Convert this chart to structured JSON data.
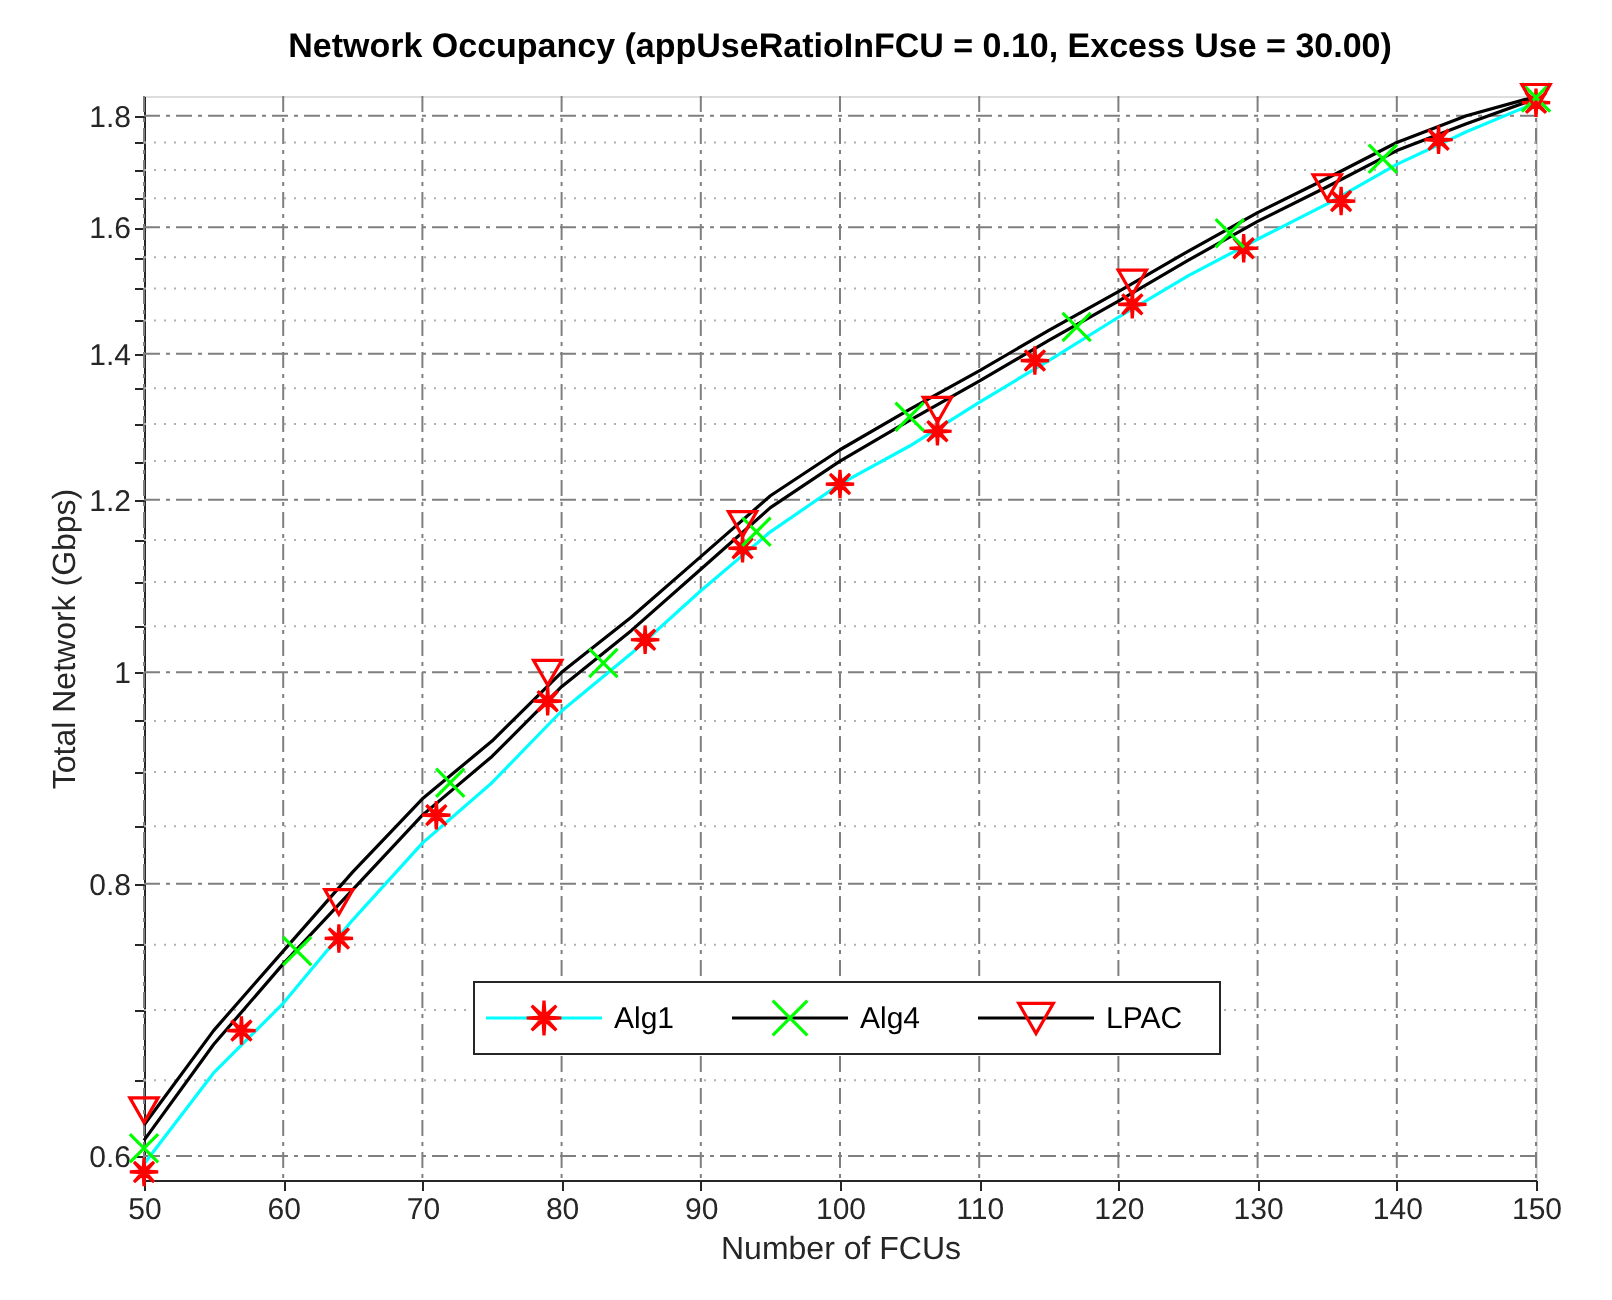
{
  "chart_data": {
    "type": "line",
    "title": "Network Occupancy (appUseRatioInFCU = 0.10, Excess Use = 30.00)",
    "xlabel": "Number of FCUs",
    "ylabel": "Total Network (Gbps)",
    "log": "y",
    "grid": true,
    "legend": "bottom",
    "xlim": [
      50,
      150
    ],
    "xticks": [
      50,
      60,
      70,
      80,
      90,
      100,
      110,
      120,
      130,
      140,
      150
    ],
    "ylim": [
      0.585,
      1.838
    ],
    "yticks": [
      0.6,
      {
        "value": 0.65,
        "label": null
      },
      {
        "value": 0.7,
        "label": null
      },
      {
        "value": 0.75,
        "label": null
      },
      0.8,
      {
        "value": 0.85,
        "label": null
      },
      {
        "value": 0.9,
        "label": null
      },
      {
        "value": 0.95,
        "label": null
      },
      1,
      {
        "value": 1.05,
        "label": null
      },
      {
        "value": 1.1,
        "label": null
      },
      {
        "value": 1.15,
        "label": null
      },
      1.2,
      {
        "value": 1.25,
        "label": null
      },
      {
        "value": 1.3,
        "label": null
      },
      {
        "value": 1.35,
        "label": null
      },
      1.4,
      {
        "value": 1.45,
        "label": null
      },
      {
        "value": 1.5,
        "label": null
      },
      {
        "value": 1.55,
        "label": null
      },
      1.6,
      {
        "value": 1.65,
        "label": null
      },
      {
        "value": 1.7,
        "label": null
      },
      {
        "value": 1.75,
        "label": null
      },
      1.8
    ],
    "x": [
      50,
      55,
      60,
      65,
      70,
      75,
      80,
      85,
      90,
      95,
      100,
      105,
      110,
      115,
      120,
      125,
      130,
      135,
      140,
      145,
      150
    ],
    "series": [
      {
        "name": "Alg1",
        "color": "#00ffff",
        "marker": "none",
        "values": [
          0.595,
          0.655,
          0.705,
          0.77,
          0.835,
          0.89,
          0.96,
          1.02,
          1.09,
          1.16,
          1.22,
          1.27,
          1.33,
          1.39,
          1.455,
          1.52,
          1.58,
          1.64,
          1.71,
          1.77,
          1.825
        ]
      },
      {
        "name": "Alg4",
        "color": "#000000",
        "marker": "none",
        "values": [
          0.61,
          0.675,
          0.735,
          0.795,
          0.86,
          0.915,
          0.985,
          1.045,
          1.115,
          1.19,
          1.25,
          1.305,
          1.36,
          1.42,
          1.48,
          1.545,
          1.61,
          1.67,
          1.735,
          1.785,
          1.833
        ]
      },
      {
        "name": "LPAC",
        "color": "#000000",
        "marker": "none",
        "values": [
          0.62,
          0.685,
          0.745,
          0.81,
          0.875,
          0.93,
          1.0,
          1.06,
          1.13,
          1.205,
          1.265,
          1.32,
          1.375,
          1.435,
          1.495,
          1.56,
          1.625,
          1.685,
          1.75,
          1.8,
          1.837
        ]
      },
      {
        "type": "scatter",
        "color": "#ff0000",
        "marker": "star",
        "x": [
          50,
          57,
          64,
          71,
          79,
          86,
          93,
          100,
          107,
          114,
          121,
          129,
          136,
          143,
          150
        ],
        "values": [
          0.59,
          0.685,
          0.755,
          0.86,
          0.97,
          1.035,
          1.14,
          1.22,
          1.29,
          1.39,
          1.475,
          1.565,
          1.645,
          1.755,
          1.825
        ]
      },
      {
        "type": "scatter",
        "color": "#00ff00",
        "marker": "cross",
        "x": [
          50,
          61,
          72,
          83,
          94,
          105,
          117,
          128,
          139,
          150
        ],
        "values": [
          0.605,
          0.745,
          0.89,
          1.01,
          1.16,
          1.31,
          1.44,
          1.59,
          1.72,
          1.835
        ]
      },
      {
        "type": "scatter",
        "color": "#ff0000",
        "marker": "triangle",
        "x": [
          50,
          64,
          79,
          93,
          107,
          121,
          135,
          150
        ],
        "values": [
          0.63,
          0.785,
          1.0,
          1.17,
          1.32,
          1.51,
          1.67,
          1.837
        ]
      }
    ]
  }
}
